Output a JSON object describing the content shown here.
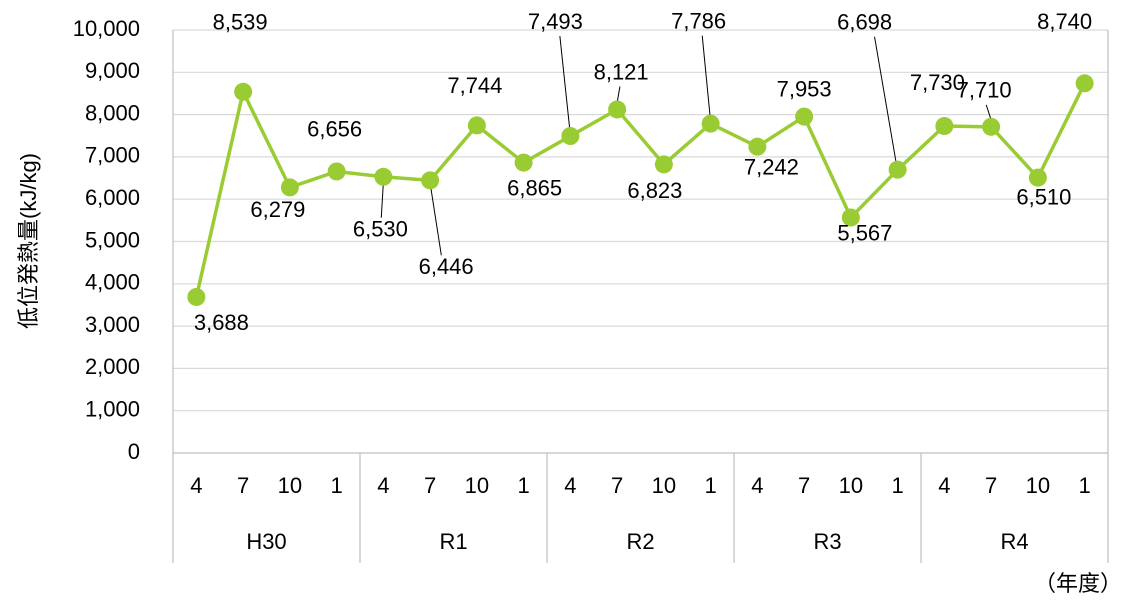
{
  "chart_data": {
    "type": "line",
    "y_label": "低位発熱量(kJ/kg)",
    "x_label": "（年度）",
    "categories": [
      "4",
      "7",
      "10",
      "1",
      "4",
      "7",
      "10",
      "1",
      "4",
      "7",
      "10",
      "1",
      "4",
      "7",
      "10",
      "1",
      "4",
      "7",
      "10",
      "1"
    ],
    "groups": [
      "H30",
      "R1",
      "R2",
      "R3",
      "R4"
    ],
    "values": [
      3688,
      8539,
      6279,
      6656,
      6530,
      6446,
      7744,
      6865,
      7493,
      8121,
      6823,
      7786,
      7242,
      7953,
      5567,
      6698,
      7730,
      7710,
      6510,
      8740
    ],
    "value_labels": [
      "3,688",
      "8,539",
      "6,279",
      "6,656",
      "6,530",
      "6,446",
      "7,744",
      "6,865",
      "7,493",
      "8,121",
      "6,823",
      "7,786",
      "7,242",
      "7,953",
      "5,567",
      "6,698",
      "7,730",
      "7,710",
      "6,510",
      "8,740"
    ],
    "color": "#99cc33",
    "ylim": [
      0,
      10000
    ],
    "yticks": [
      0,
      {
        "value": 1000,
        "label": "1,000"
      },
      {
        "value": 2000,
        "label": "2,000"
      },
      {
        "value": 3000,
        "label": "3,000"
      },
      {
        "value": 4000,
        "label": "4,000"
      },
      {
        "value": 5000,
        "label": "5,000"
      },
      {
        "value": 6000,
        "label": "6,000"
      },
      {
        "value": 7000,
        "label": "7,000"
      },
      {
        "value": 8000,
        "label": "8,000"
      },
      {
        "value": 9000,
        "label": "9,000"
      },
      {
        "value": 10000,
        "label": "10,000"
      }
    ],
    "grid": true
  }
}
